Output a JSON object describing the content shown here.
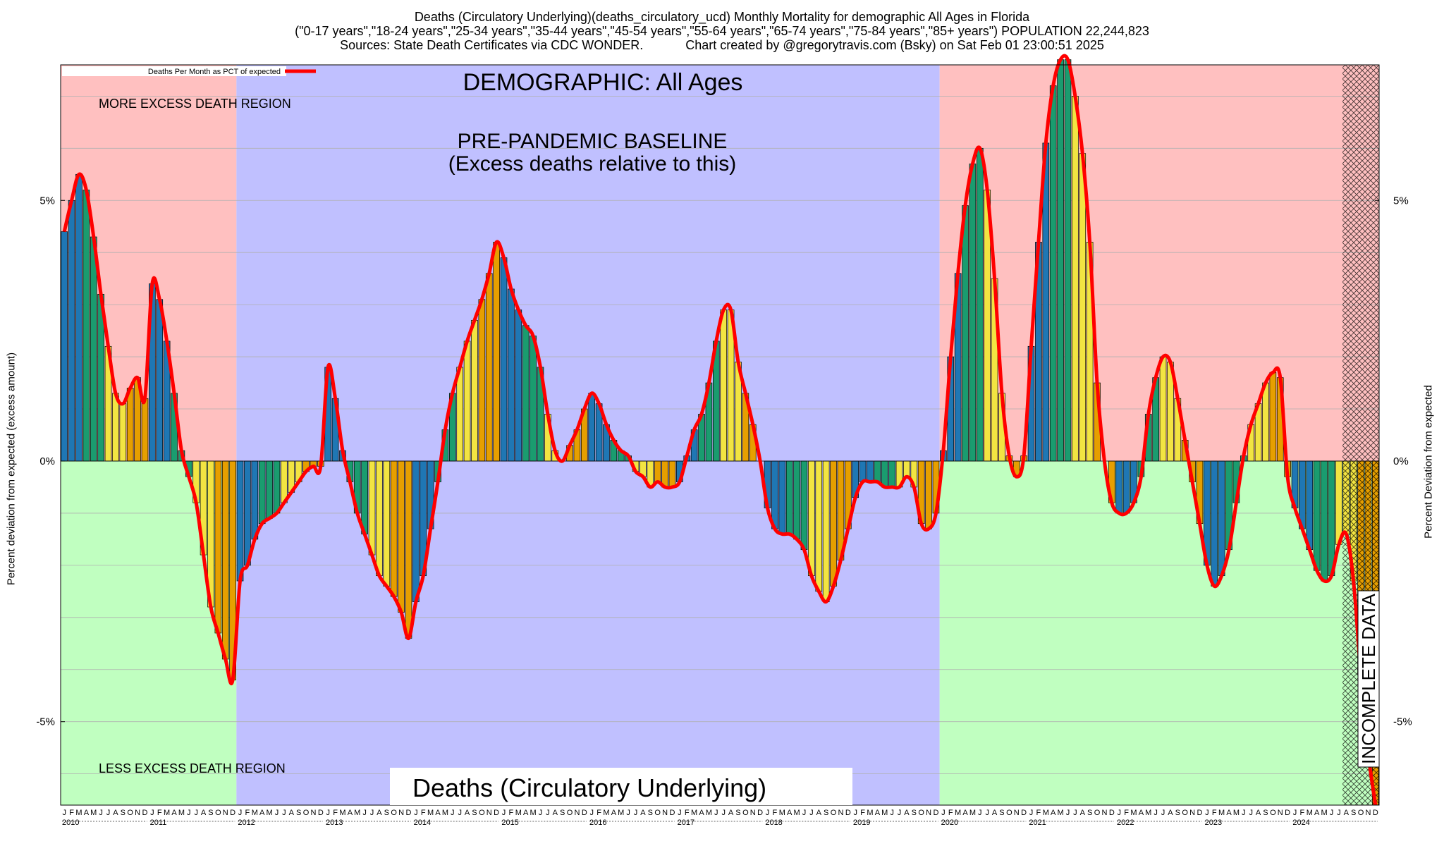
{
  "header": {
    "line1": "Deaths (Circulatory Underlying)(deaths_circulatory_ucd) Monthly Mortality for demographic All Ages in Florida",
    "line2": "(\"0-17 years\",\"18-24 years\",\"25-34 years\",\"35-44 years\",\"45-54 years\",\"55-64 years\",\"65-74 years\",\"75-84 years\",\"85+ years\") POPULATION 22,244,823",
    "line3": "Sources: State Death Certificates via CDC WONDER.            Chart created by @gregorytravis.com (Bsky) on Sat Feb 01 23:00:51 2025"
  },
  "legend": {
    "label": "Deaths Per Month as PCT of expected"
  },
  "annotations": {
    "demographic": "DEMOGRAPHIC: All Ages",
    "baseline1": "PRE-PANDEMIC BASELINE",
    "baseline2": "(Excess deaths relative to this)",
    "more_region": "MORE EXCESS DEATH REGION",
    "less_region": "LESS EXCESS DEATH REGION",
    "incomplete": "INCOMPLETE DATA",
    "bottom_title": "Deaths (Circulatory Underlying)"
  },
  "axes": {
    "ylabel_left": "Percent deviation from expected (excess amount)",
    "ylabel_right": "Percent Deviation from expected",
    "yticks": [
      {
        "value": 5,
        "label": "5%"
      },
      {
        "value": 0,
        "label": "0%"
      },
      {
        "value": -5,
        "label": "-5%"
      }
    ],
    "ylim": [
      -6.6,
      7.6
    ],
    "month_letters": [
      "J",
      "F",
      "M",
      "A",
      "M",
      "J",
      "J",
      "A",
      "S",
      "O",
      "N",
      "D"
    ],
    "years": [
      "2010",
      "2011",
      "2012",
      "2013",
      "2014",
      "2015",
      "2016",
      "2017",
      "2018",
      "2019",
      "2020",
      "2021",
      "2022",
      "2023",
      "2024"
    ]
  },
  "colors": {
    "more_region": "#ffc0c0",
    "less_region": "#c0ffc0",
    "baseline_region": "#c0c0ff",
    "line": "#ff0000",
    "bar_palette": [
      "#1f77b4",
      "#1a9c6f",
      "#f2e442",
      "#e69f00"
    ]
  },
  "chart_data": {
    "type": "bar",
    "start": "2010-01",
    "frequency": "monthly",
    "baseline_period": [
      "2012-01",
      "2019-12"
    ],
    "incomplete_from": "2024-08",
    "series": [
      {
        "name": "Deaths Per Month as PCT of expected",
        "values": [
          4.4,
          5.0,
          5.5,
          5.2,
          4.3,
          3.2,
          2.2,
          1.3,
          1.1,
          1.4,
          1.6,
          1.2,
          3.4,
          3.1,
          2.3,
          1.3,
          0.2,
          -0.3,
          -0.8,
          -1.8,
          -2.8,
          -3.3,
          -3.8,
          -4.2,
          -2.3,
          -2.0,
          -1.5,
          -1.2,
          -1.1,
          -1.0,
          -0.8,
          -0.6,
          -0.4,
          -0.2,
          -0.1,
          -0.1,
          1.8,
          1.2,
          0.2,
          -0.4,
          -1.0,
          -1.4,
          -1.8,
          -2.2,
          -2.4,
          -2.6,
          -2.9,
          -3.4,
          -2.7,
          -2.2,
          -1.3,
          -0.4,
          0.6,
          1.3,
          1.8,
          2.3,
          2.7,
          3.1,
          3.6,
          4.2,
          3.9,
          3.3,
          2.9,
          2.6,
          2.4,
          1.8,
          0.9,
          0.2,
          0.0,
          0.3,
          0.6,
          1.0,
          1.3,
          1.1,
          0.7,
          0.4,
          0.2,
          0.1,
          -0.2,
          -0.3,
          -0.5,
          -0.4,
          -0.5,
          -0.5,
          -0.4,
          0.1,
          0.6,
          0.9,
          1.5,
          2.3,
          2.9,
          2.9,
          1.9,
          1.3,
          0.7,
          0.0,
          -0.9,
          -1.3,
          -1.4,
          -1.4,
          -1.5,
          -1.7,
          -2.2,
          -2.5,
          -2.7,
          -2.4,
          -1.9,
          -1.3,
          -0.7,
          -0.4,
          -0.4,
          -0.4,
          -0.5,
          -0.5,
          -0.5,
          -0.3,
          -0.5,
          -1.2,
          -1.3,
          -1.0,
          0.2,
          2.0,
          3.6,
          4.9,
          5.7,
          6.0,
          5.2,
          3.5,
          1.3,
          0.1,
          -0.3,
          0.1,
          2.2,
          4.2,
          6.1,
          7.2,
          7.7,
          7.7,
          7.0,
          5.9,
          4.2,
          1.5,
          0.0,
          -0.8,
          -1.0,
          -1.0,
          -0.8,
          -0.3,
          0.9,
          1.6,
          2.0,
          1.9,
          1.2,
          0.4,
          -0.4,
          -1.2,
          -2.0,
          -2.4,
          -2.2,
          -1.7,
          -0.8,
          0.1,
          0.7,
          1.1,
          1.5,
          1.7,
          1.6,
          -0.3,
          -0.9,
          -1.3,
          -1.7,
          -2.1,
          -2.3,
          -2.2,
          -1.6,
          -1.4,
          -2.3,
          -4.1,
          -5.6,
          -6.6
        ]
      }
    ]
  }
}
